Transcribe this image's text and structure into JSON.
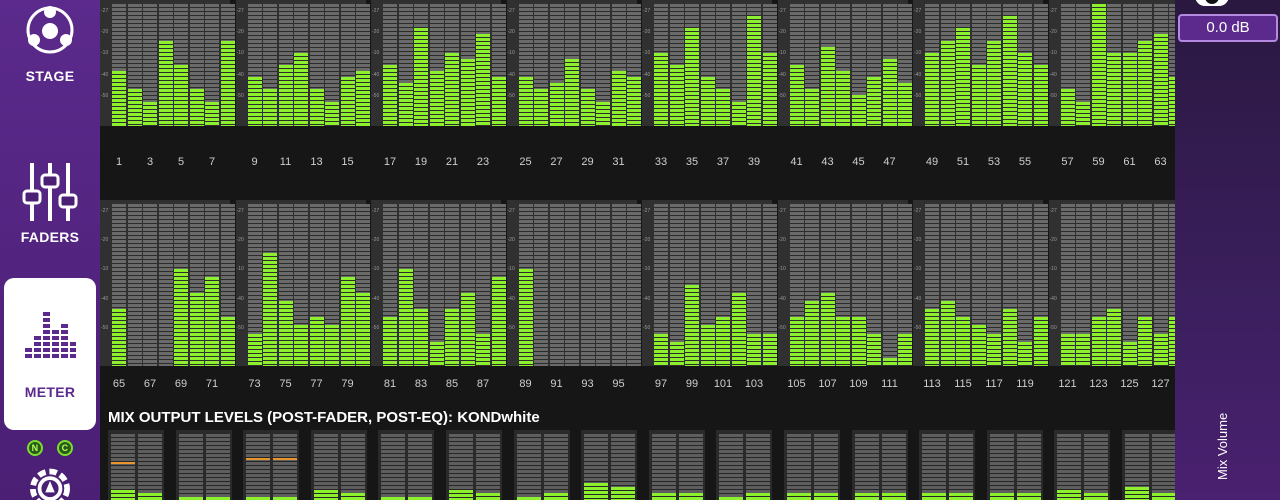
{
  "sidebar": {
    "stage_label": "STAGE",
    "faders_label": "FADERS",
    "meter_label": "METER",
    "n_badge": "N",
    "c_badge": "C"
  },
  "channels": {
    "row1_labels": [
      "1",
      "3",
      "5",
      "7",
      "9",
      "11",
      "13",
      "15",
      "17",
      "19",
      "21",
      "23",
      "25",
      "27",
      "29",
      "31",
      "33",
      "35",
      "37",
      "39",
      "41",
      "43",
      "45",
      "47",
      "49",
      "51",
      "53",
      "55",
      "57",
      "59",
      "61",
      "63"
    ],
    "row2_labels": [
      "65",
      "67",
      "69",
      "71",
      "73",
      "75",
      "77",
      "79",
      "81",
      "83",
      "85",
      "87",
      "89",
      "91",
      "93",
      "95",
      "97",
      "99",
      "101",
      "103",
      "105",
      "107",
      "109",
      "111",
      "113",
      "115",
      "117",
      "119",
      "121",
      "123",
      "125",
      "127"
    ],
    "scale_labels": [
      "-27",
      "-20",
      "-10",
      "-40",
      "-50"
    ],
    "row1_levels": [
      0.45,
      0.3,
      0.2,
      0.7,
      0.5,
      0.3,
      0.2,
      0.7,
      0.4,
      0.3,
      0.5,
      0.6,
      0.3,
      0.2,
      0.4,
      0.45,
      0.5,
      0.35,
      0.8,
      0.45,
      0.6,
      0.55,
      0.75,
      0.4,
      0.4,
      0.3,
      0.35,
      0.55,
      0.3,
      0.2,
      0.45,
      0.4,
      0.6,
      0.5,
      0.8,
      0.4,
      0.3,
      0.2,
      0.9,
      0.6,
      0.5,
      0.3,
      0.65,
      0.45,
      0.25,
      0.4,
      0.55,
      0.35,
      0.6,
      0.7,
      0.8,
      0.5,
      0.7,
      0.9,
      0.6,
      0.5,
      0.3,
      0.2,
      1.0,
      0.6,
      0.6,
      0.7,
      0.75,
      0.4
    ],
    "row2_levels": [
      0.35,
      0.0,
      0.0,
      0.0,
      0.6,
      0.45,
      0.55,
      0.3,
      0.2,
      0.7,
      0.4,
      0.25,
      0.3,
      0.25,
      0.55,
      0.45,
      0.3,
      0.6,
      0.35,
      0.15,
      0.35,
      0.45,
      0.2,
      0.55,
      0.6,
      0.0,
      0.0,
      0.0,
      0.0,
      0.0,
      0.0,
      0.0,
      0.2,
      0.15,
      0.5,
      0.25,
      0.3,
      0.45,
      0.2,
      0.2,
      0.3,
      0.4,
      0.45,
      0.3,
      0.3,
      0.2,
      0.05,
      0.2,
      0.35,
      0.4,
      0.3,
      0.25,
      0.2,
      0.35,
      0.15,
      0.3,
      0.2,
      0.2,
      0.3,
      0.35,
      0.15,
      0.3,
      0.2,
      0.3
    ]
  },
  "mix_output": {
    "title": "MIX OUTPUT LEVELS (POST-FADER, POST-EQ): KONDwhite",
    "levels": [
      0.15,
      0.1,
      0.05,
      0.05,
      0.05,
      0.05,
      0.15,
      0.1,
      0.05,
      0.05,
      0.15,
      0.1,
      0.05,
      0.1,
      0.25,
      0.2,
      0.1,
      0.1,
      0.05,
      0.1,
      0.1,
      0.1,
      0.1,
      0.1,
      0.1,
      0.1,
      0.1,
      0.1,
      0.15,
      0.1,
      0.2,
      0.1
    ],
    "peaks": [
      0.55,
      -1,
      -1,
      -1,
      0.6,
      0.6,
      -1,
      -1,
      -1,
      -1,
      -1,
      -1,
      -1,
      -1,
      -1,
      -1,
      -1,
      -1,
      -1,
      -1,
      -1,
      -1,
      -1,
      -1,
      -1,
      -1,
      -1,
      -1,
      -1,
      -1,
      -1,
      -1
    ]
  },
  "right_panel": {
    "volume_readout": "0.0 dB",
    "volume_label": "Mix Volume"
  },
  "colors": {
    "accent": "#5b2a8c",
    "meter_green": "#8cf02c",
    "peak_orange": "#e8962c"
  }
}
